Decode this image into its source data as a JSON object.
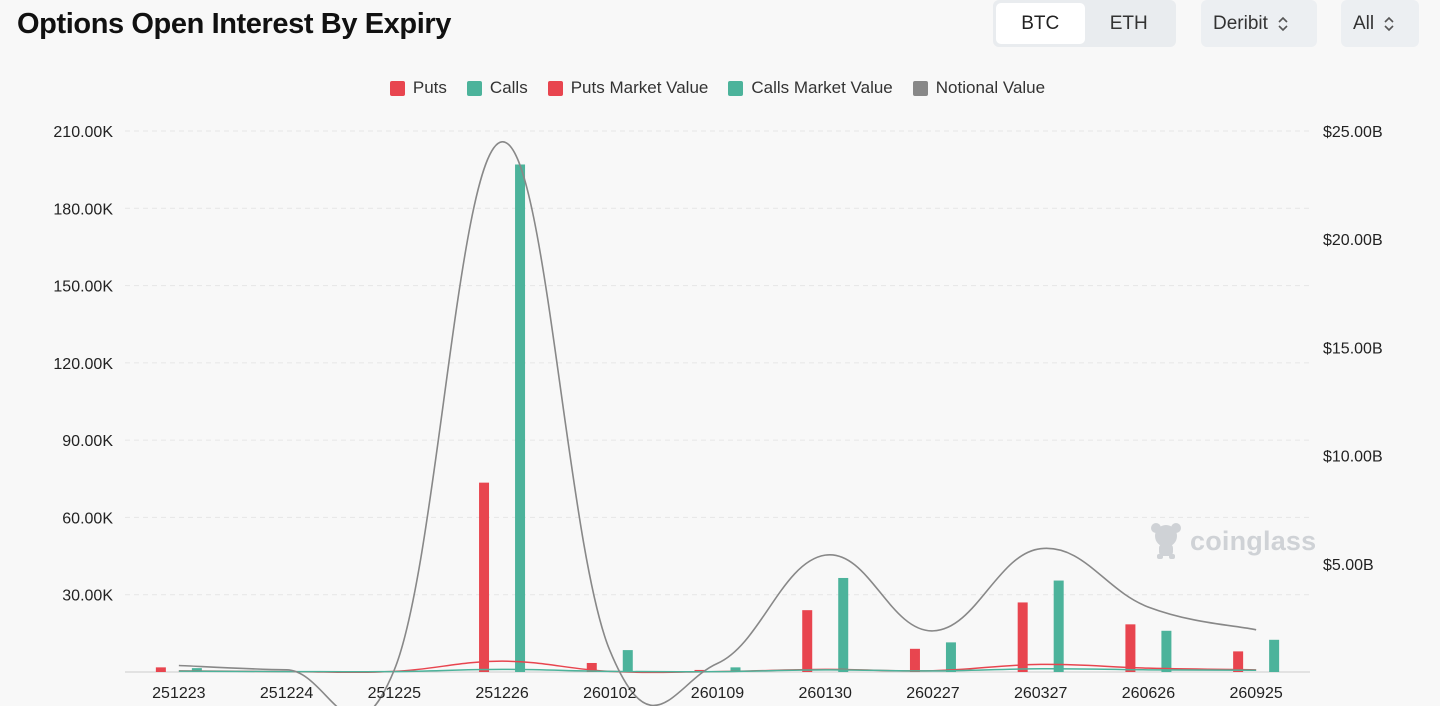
{
  "header": {
    "title": "Options Open Interest By Expiry",
    "asset_tabs": [
      "BTC",
      "ETH"
    ],
    "active_asset": "BTC",
    "exchange_select": "Deribit",
    "range_select": "All"
  },
  "watermark": "coinglass",
  "colors": {
    "puts": "#e8454f",
    "calls": "#4cb39b",
    "notional": "#888888",
    "grid": "#e6e6e6"
  },
  "chart_data": {
    "type": "bar",
    "categories": [
      "251223",
      "251224",
      "251225",
      "251226",
      "260102",
      "260109",
      "260130",
      "260227",
      "260327",
      "260626",
      "260925"
    ],
    "legend": [
      "Puts",
      "Calls",
      "Puts Market Value",
      "Calls Market Value",
      "Notional Value"
    ],
    "left_axis": {
      "min": 0,
      "max": 210000,
      "ticks": [
        0,
        30000,
        60000,
        90000,
        120000,
        150000,
        180000,
        210000
      ],
      "tick_labels": [
        "",
        "30.00K",
        "60.00K",
        "90.00K",
        "120.00K",
        "150.00K",
        "180.00K",
        "210.00K"
      ]
    },
    "right_axis": {
      "min": 0,
      "max": 25,
      "ticks": [
        5,
        10,
        15,
        20,
        25
      ],
      "tick_labels": [
        "$5.00B",
        "$10.00B",
        "$15.00B",
        "$20.00B",
        "$25.00B"
      ]
    },
    "series": [
      {
        "name": "Puts",
        "type": "bar",
        "axis": "left",
        "values": [
          1800,
          300,
          200,
          73500,
          3500,
          800,
          24000,
          9000,
          27000,
          18500,
          8000
        ]
      },
      {
        "name": "Calls",
        "type": "bar",
        "axis": "left",
        "values": [
          1500,
          300,
          200,
          197000,
          8500,
          1800,
          36500,
          11500,
          35500,
          16000,
          12500
        ]
      },
      {
        "name": "Puts Market Value",
        "type": "line",
        "axis": "right",
        "values": [
          0.05,
          0.02,
          0.03,
          0.5,
          0.03,
          0.02,
          0.12,
          0.06,
          0.35,
          0.18,
          0.1
        ]
      },
      {
        "name": "Calls Market Value",
        "type": "line",
        "axis": "right",
        "values": [
          0.04,
          0.02,
          0.02,
          0.12,
          0.03,
          0.02,
          0.1,
          0.05,
          0.15,
          0.1,
          0.08
        ]
      },
      {
        "name": "Notional Value",
        "type": "line",
        "axis": "right",
        "values": [
          0.3,
          0.1,
          0.1,
          24.5,
          1.0,
          0.4,
          5.4,
          1.9,
          5.7,
          3.0,
          1.95
        ]
      }
    ],
    "grid": true,
    "legend_position": "top-center"
  }
}
